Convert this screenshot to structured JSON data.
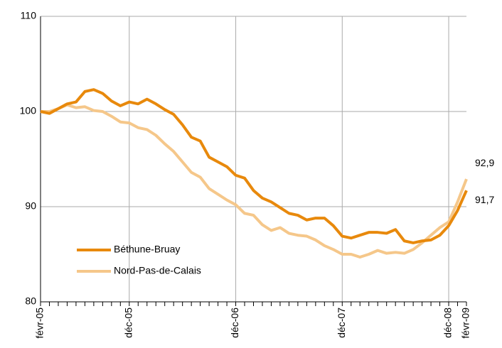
{
  "chart_data": {
    "type": "line",
    "categories": [
      "févr-05",
      null,
      null,
      null,
      null,
      null,
      null,
      null,
      null,
      null,
      "déc-05",
      null,
      null,
      null,
      null,
      null,
      null,
      null,
      null,
      null,
      null,
      null,
      "déc-06",
      null,
      null,
      null,
      null,
      null,
      null,
      null,
      null,
      null,
      null,
      null,
      "déc-07",
      null,
      null,
      null,
      null,
      null,
      null,
      null,
      null,
      null,
      null,
      null,
      "déc-08",
      null,
      "févr-09"
    ],
    "series": [
      {
        "name": "Béthune-Bruay",
        "color": "#e8890c",
        "values": [
          100.0,
          99.8,
          100.3,
          100.8,
          101.0,
          102.1,
          102.3,
          101.9,
          101.1,
          100.6,
          101.0,
          100.8,
          101.3,
          100.8,
          100.2,
          99.7,
          98.6,
          97.3,
          96.9,
          95.2,
          94.7,
          94.2,
          93.3,
          93.0,
          91.7,
          90.9,
          90.5,
          89.9,
          89.3,
          89.1,
          88.6,
          88.8,
          88.8,
          88.0,
          86.9,
          86.7,
          87.0,
          87.3,
          87.3,
          87.2,
          87.6,
          86.4,
          86.2,
          86.4,
          86.5,
          87.0,
          88.0,
          89.6,
          91.7
        ],
        "value_labels": [
          null,
          null,
          null,
          null,
          null,
          null,
          null,
          null,
          null,
          null,
          null,
          null,
          null,
          null,
          null,
          null,
          null,
          null,
          null,
          null,
          null,
          null,
          null,
          null,
          null,
          null,
          null,
          null,
          null,
          null,
          null,
          null,
          null,
          null,
          null,
          null,
          null,
          null,
          null,
          null,
          null,
          null,
          null,
          null,
          null,
          null,
          null,
          null,
          "91,7"
        ]
      },
      {
        "name": "Nord-Pas-de-Calais",
        "color": "#f5c78a",
        "values": [
          100.0,
          100.0,
          100.3,
          100.7,
          100.4,
          100.5,
          100.1,
          100.0,
          99.5,
          98.9,
          98.8,
          98.3,
          98.1,
          97.5,
          96.6,
          95.8,
          94.7,
          93.6,
          93.1,
          91.9,
          91.3,
          90.7,
          90.2,
          89.3,
          89.1,
          88.1,
          87.5,
          87.8,
          87.2,
          87.0,
          86.9,
          86.5,
          85.9,
          85.5,
          85.0,
          85.0,
          84.7,
          85.0,
          85.4,
          85.1,
          85.2,
          85.1,
          85.5,
          86.2,
          87.0,
          87.8,
          88.4,
          90.5,
          92.9
        ],
        "value_labels": [
          null,
          null,
          null,
          null,
          null,
          null,
          null,
          null,
          null,
          null,
          null,
          null,
          null,
          null,
          null,
          null,
          null,
          null,
          null,
          null,
          null,
          null,
          null,
          null,
          null,
          null,
          null,
          null,
          null,
          null,
          null,
          null,
          null,
          null,
          null,
          null,
          null,
          null,
          null,
          null,
          null,
          null,
          null,
          null,
          null,
          null,
          null,
          null,
          "92,9"
        ]
      }
    ],
    "ylim": [
      80,
      110
    ],
    "yticks": [
      80,
      90,
      100,
      110
    ],
    "grid": true,
    "legend": "lower left"
  }
}
